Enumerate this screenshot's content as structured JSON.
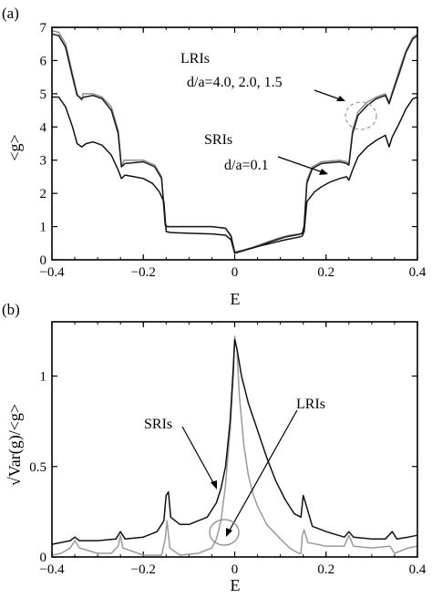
{
  "chart_data": [
    {
      "panel_label": "(a)",
      "type": "line",
      "xlabel": "E",
      "ylabel": "<g>",
      "xlim": [
        -0.4,
        0.4
      ],
      "ylim": [
        0,
        7
      ],
      "xticks": [
        -0.4,
        -0.2,
        0,
        0.2,
        0.4
      ],
      "xtick_labels": [
        "−0.4",
        "−0.2",
        "0",
        "0.2",
        "0.4"
      ],
      "yticks": [
        0,
        1,
        2,
        3,
        4,
        5,
        6,
        7
      ],
      "ytick_labels": [
        "0",
        "1",
        "2",
        "3",
        "4",
        "5",
        "6",
        "7"
      ],
      "series": [
        {
          "color": "#8c8c8c",
          "points": [
            [
              -0.4,
              6.9
            ],
            [
              -0.385,
              6.85
            ],
            [
              -0.37,
              6.5
            ],
            [
              -0.355,
              5.6
            ],
            [
              -0.345,
              5.0
            ],
            [
              -0.335,
              4.8
            ],
            [
              -0.332,
              5.0
            ],
            [
              -0.31,
              5.0
            ],
            [
              -0.29,
              4.9
            ],
            [
              -0.27,
              4.6
            ],
            [
              -0.255,
              3.9
            ],
            [
              -0.248,
              2.8
            ],
            [
              -0.242,
              3.0
            ],
            [
              -0.2,
              3.0
            ],
            [
              -0.175,
              2.85
            ],
            [
              -0.16,
              2.5
            ],
            [
              -0.152,
              1.1
            ],
            [
              -0.148,
              1.0
            ],
            [
              -0.1,
              1.0
            ],
            [
              -0.05,
              1.0
            ],
            [
              -0.02,
              0.95
            ],
            [
              -0.008,
              0.75
            ],
            [
              0,
              0.25
            ],
            [
              0.005,
              0.25
            ],
            [
              0.02,
              0.3
            ],
            [
              0.04,
              0.38
            ],
            [
              0.06,
              0.48
            ],
            [
              0.08,
              0.58
            ],
            [
              0.1,
              0.67
            ],
            [
              0.12,
              0.74
            ],
            [
              0.14,
              0.78
            ],
            [
              0.148,
              0.8
            ],
            [
              0.152,
              1.05
            ],
            [
              0.158,
              2.4
            ],
            [
              0.17,
              2.8
            ],
            [
              0.19,
              2.95
            ],
            [
              0.23,
              3.0
            ],
            [
              0.245,
              2.95
            ],
            [
              0.25,
              2.9
            ],
            [
              0.258,
              3.9
            ],
            [
              0.27,
              4.45
            ],
            [
              0.29,
              4.75
            ],
            [
              0.31,
              4.9
            ],
            [
              0.33,
              5.0
            ],
            [
              0.338,
              4.75
            ],
            [
              0.345,
              5.05
            ],
            [
              0.36,
              5.7
            ],
            [
              0.375,
              6.3
            ],
            [
              0.39,
              6.7
            ],
            [
              0.4,
              6.8
            ]
          ]
        },
        {
          "color": "#1a1a1a",
          "points": [
            [
              -0.4,
              6.8
            ],
            [
              -0.385,
              6.75
            ],
            [
              -0.37,
              6.4
            ],
            [
              -0.355,
              5.5
            ],
            [
              -0.345,
              4.95
            ],
            [
              -0.335,
              4.85
            ],
            [
              -0.33,
              4.9
            ],
            [
              -0.31,
              4.95
            ],
            [
              -0.29,
              4.85
            ],
            [
              -0.27,
              4.5
            ],
            [
              -0.255,
              3.8
            ],
            [
              -0.248,
              2.8
            ],
            [
              -0.24,
              2.9
            ],
            [
              -0.2,
              2.95
            ],
            [
              -0.175,
              2.8
            ],
            [
              -0.16,
              2.45
            ],
            [
              -0.152,
              1.05
            ],
            [
              -0.148,
              1.0
            ],
            [
              -0.1,
              1.0
            ],
            [
              -0.05,
              1.0
            ],
            [
              -0.02,
              0.95
            ],
            [
              -0.008,
              0.7
            ],
            [
              0,
              0.2
            ],
            [
              0.005,
              0.22
            ],
            [
              0.02,
              0.28
            ],
            [
              0.05,
              0.4
            ],
            [
              0.08,
              0.55
            ],
            [
              0.11,
              0.68
            ],
            [
              0.14,
              0.76
            ],
            [
              0.148,
              0.8
            ],
            [
              0.152,
              1.0
            ],
            [
              0.158,
              2.3
            ],
            [
              0.17,
              2.75
            ],
            [
              0.19,
              2.9
            ],
            [
              0.23,
              2.95
            ],
            [
              0.245,
              2.9
            ],
            [
              0.25,
              2.85
            ],
            [
              0.258,
              3.8
            ],
            [
              0.27,
              4.35
            ],
            [
              0.29,
              4.65
            ],
            [
              0.31,
              4.85
            ],
            [
              0.33,
              4.95
            ],
            [
              0.338,
              4.7
            ],
            [
              0.345,
              5.0
            ],
            [
              0.36,
              5.6
            ],
            [
              0.375,
              6.25
            ],
            [
              0.39,
              6.65
            ],
            [
              0.4,
              6.75
            ]
          ]
        },
        {
          "color": "#111111",
          "points": [
            [
              -0.4,
              4.9
            ],
            [
              -0.385,
              4.9
            ],
            [
              -0.37,
              4.6
            ],
            [
              -0.355,
              4.0
            ],
            [
              -0.345,
              3.5
            ],
            [
              -0.335,
              3.4
            ],
            [
              -0.325,
              3.5
            ],
            [
              -0.31,
              3.55
            ],
            [
              -0.29,
              3.45
            ],
            [
              -0.27,
              3.15
            ],
            [
              -0.255,
              2.7
            ],
            [
              -0.248,
              2.45
            ],
            [
              -0.24,
              2.55
            ],
            [
              -0.22,
              2.5
            ],
            [
              -0.2,
              2.45
            ],
            [
              -0.18,
              2.3
            ],
            [
              -0.165,
              2.05
            ],
            [
              -0.155,
              1.75
            ],
            [
              -0.15,
              0.85
            ],
            [
              -0.14,
              0.82
            ],
            [
              -0.1,
              0.8
            ],
            [
              -0.05,
              0.78
            ],
            [
              -0.02,
              0.74
            ],
            [
              -0.008,
              0.6
            ],
            [
              0,
              0.2
            ],
            [
              0.005,
              0.22
            ],
            [
              0.02,
              0.28
            ],
            [
              0.05,
              0.4
            ],
            [
              0.08,
              0.5
            ],
            [
              0.11,
              0.6
            ],
            [
              0.14,
              0.68
            ],
            [
              0.148,
              0.72
            ],
            [
              0.152,
              0.85
            ],
            [
              0.158,
              1.75
            ],
            [
              0.175,
              2.05
            ],
            [
              0.19,
              2.2
            ],
            [
              0.21,
              2.35
            ],
            [
              0.23,
              2.45
            ],
            [
              0.245,
              2.5
            ],
            [
              0.25,
              2.4
            ],
            [
              0.258,
              2.7
            ],
            [
              0.27,
              3.1
            ],
            [
              0.29,
              3.4
            ],
            [
              0.31,
              3.6
            ],
            [
              0.33,
              3.75
            ],
            [
              0.338,
              3.4
            ],
            [
              0.345,
              3.7
            ],
            [
              0.36,
              4.1
            ],
            [
              0.375,
              4.55
            ],
            [
              0.39,
              4.85
            ],
            [
              0.4,
              4.9
            ]
          ]
        }
      ],
      "annotations": [
        {
          "id": "lris_title",
          "text": "LRIs"
        },
        {
          "id": "lris_da",
          "text": "d/a=4.0, 2.0, 1.5"
        },
        {
          "id": "sris_title",
          "text": "SRIs"
        },
        {
          "id": "sris_da",
          "text": "d/a=0.1"
        }
      ]
    },
    {
      "panel_label": "(b)",
      "type": "line",
      "xlabel": "E",
      "ylabel": "√Var(g)/<g>",
      "xlim": [
        -0.4,
        0.4
      ],
      "ylim": [
        0,
        1.3
      ],
      "xticks": [
        -0.4,
        -0.2,
        0,
        0.2,
        0.4
      ],
      "xtick_labels": [
        "−0.4",
        "−0.2",
        "0",
        "0.2",
        "0.4"
      ],
      "yticks": [
        0,
        0.5,
        1
      ],
      "ytick_labels": [
        "0",
        "0.5",
        "1"
      ],
      "series": [
        {
          "color": "#9a9a9a",
          "points": [
            [
              -0.4,
              0.01
            ],
            [
              -0.38,
              0.02
            ],
            [
              -0.36,
              0.05
            ],
            [
              -0.35,
              0.09
            ],
            [
              -0.34,
              0.05
            ],
            [
              -0.3,
              0.02
            ],
            [
              -0.27,
              0.02
            ],
            [
              -0.255,
              0.06
            ],
            [
              -0.25,
              0.12
            ],
            [
              -0.245,
              0.05
            ],
            [
              -0.2,
              0.01
            ],
            [
              -0.16,
              0.01
            ],
            [
              -0.152,
              0.1
            ],
            [
              -0.148,
              0.2
            ],
            [
              -0.142,
              0.05
            ],
            [
              -0.12,
              0.01
            ],
            [
              -0.08,
              0.02
            ],
            [
              -0.05,
              0.05
            ],
            [
              -0.04,
              0.1
            ],
            [
              -0.03,
              0.2
            ],
            [
              -0.02,
              0.4
            ],
            [
              -0.01,
              0.7
            ],
            [
              -0.003,
              1.0
            ],
            [
              0,
              1.22
            ],
            [
              0.005,
              1.15
            ],
            [
              0.01,
              0.9
            ],
            [
              0.02,
              0.62
            ],
            [
              0.03,
              0.45
            ],
            [
              0.04,
              0.35
            ],
            [
              0.05,
              0.28
            ],
            [
              0.07,
              0.18
            ],
            [
              0.1,
              0.1
            ],
            [
              0.12,
              0.05
            ],
            [
              0.14,
              0.02
            ],
            [
              0.145,
              0.02
            ],
            [
              0.148,
              0.12
            ],
            [
              0.152,
              0.15
            ],
            [
              0.16,
              0.08
            ],
            [
              0.2,
              0.06
            ],
            [
              0.24,
              0.06
            ],
            [
              0.25,
              0.12
            ],
            [
              0.26,
              0.06
            ],
            [
              0.3,
              0.05
            ],
            [
              0.34,
              0.06
            ],
            [
              0.35,
              0.02
            ],
            [
              0.38,
              0.05
            ],
            [
              0.4,
              0.06
            ]
          ]
        },
        {
          "color": "#111111",
          "points": [
            [
              -0.4,
              0.07
            ],
            [
              -0.38,
              0.08
            ],
            [
              -0.36,
              0.09
            ],
            [
              -0.35,
              0.11
            ],
            [
              -0.34,
              0.09
            ],
            [
              -0.3,
              0.09
            ],
            [
              -0.26,
              0.1
            ],
            [
              -0.25,
              0.14
            ],
            [
              -0.24,
              0.1
            ],
            [
              -0.2,
              0.11
            ],
            [
              -0.17,
              0.14
            ],
            [
              -0.155,
              0.2
            ],
            [
              -0.15,
              0.34
            ],
            [
              -0.145,
              0.36
            ],
            [
              -0.14,
              0.22
            ],
            [
              -0.12,
              0.18
            ],
            [
              -0.1,
              0.18
            ],
            [
              -0.08,
              0.2
            ],
            [
              -0.06,
              0.22
            ],
            [
              -0.05,
              0.26
            ],
            [
              -0.04,
              0.3
            ],
            [
              -0.03,
              0.38
            ],
            [
              -0.02,
              0.5
            ],
            [
              -0.01,
              0.75
            ],
            [
              -0.003,
              1.05
            ],
            [
              0,
              1.2
            ],
            [
              0.005,
              1.15
            ],
            [
              0.015,
              1.0
            ],
            [
              0.03,
              0.85
            ],
            [
              0.05,
              0.7
            ],
            [
              0.07,
              0.55
            ],
            [
              0.09,
              0.42
            ],
            [
              0.11,
              0.32
            ],
            [
              0.13,
              0.24
            ],
            [
              0.145,
              0.22
            ],
            [
              0.15,
              0.34
            ],
            [
              0.155,
              0.3
            ],
            [
              0.17,
              0.17
            ],
            [
              0.2,
              0.14
            ],
            [
              0.24,
              0.11
            ],
            [
              0.25,
              0.14
            ],
            [
              0.26,
              0.11
            ],
            [
              0.3,
              0.1
            ],
            [
              0.33,
              0.1
            ],
            [
              0.345,
              0.14
            ],
            [
              0.355,
              0.1
            ],
            [
              0.38,
              0.11
            ],
            [
              0.4,
              0.12
            ]
          ]
        }
      ],
      "annotations": [
        {
          "id": "sris_b",
          "text": "SRIs"
        },
        {
          "id": "lris_b",
          "text": "LRIs"
        }
      ]
    }
  ]
}
